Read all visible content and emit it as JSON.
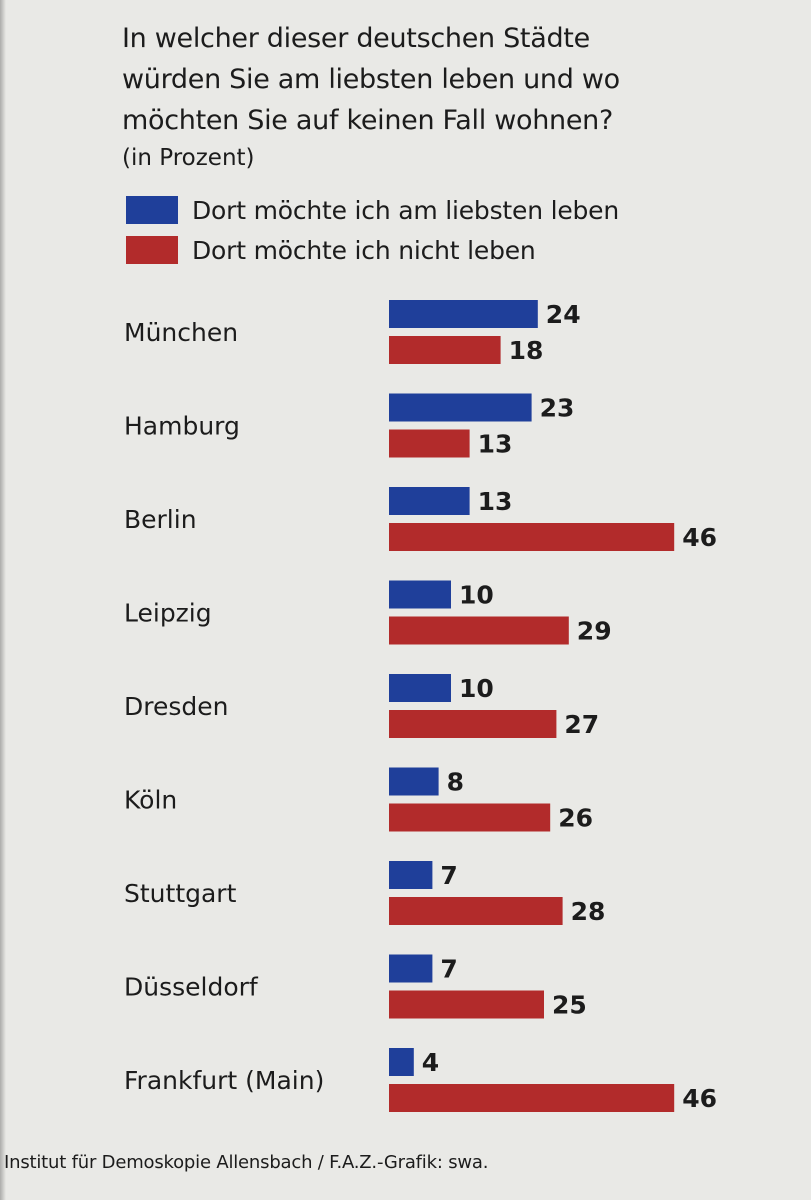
{
  "header": {
    "title_lines": [
      "In welcher dieser deutschen Städte",
      "würden Sie am liebsten leben und wo",
      "möchten Sie auf keinen Fall wohnen?"
    ],
    "subtitle": "(in Prozent)"
  },
  "colors": {
    "blue": "#1f3f9a",
    "red": "#b22b2b"
  },
  "chart_data": {
    "type": "bar",
    "orientation": "horizontal",
    "title": "In welcher dieser deutschen Städte würden Sie am liebsten leben und wo möchten Sie auf keinen Fall wohnen?",
    "subtitle": "(in Prozent)",
    "categories": [
      "München",
      "Hamburg",
      "Berlin",
      "Leipzig",
      "Dresden",
      "Köln",
      "Stuttgart",
      "Düsseldorf",
      "Frankfurt (Main)"
    ],
    "series": [
      {
        "name": "Dort möchte ich am liebsten leben",
        "color": "#1f3f9a",
        "values": [
          24,
          23,
          13,
          10,
          10,
          8,
          7,
          7,
          4
        ]
      },
      {
        "name": "Dort möchte ich nicht leben",
        "color": "#b22b2b",
        "values": [
          18,
          13,
          46,
          29,
          27,
          26,
          28,
          25,
          46
        ]
      }
    ],
    "legend_position": "top-left",
    "grid": false,
    "data_labels": true
  },
  "source": "Institut für Demoskopie Allensbach / F.A.Z.-Grafik: swa."
}
